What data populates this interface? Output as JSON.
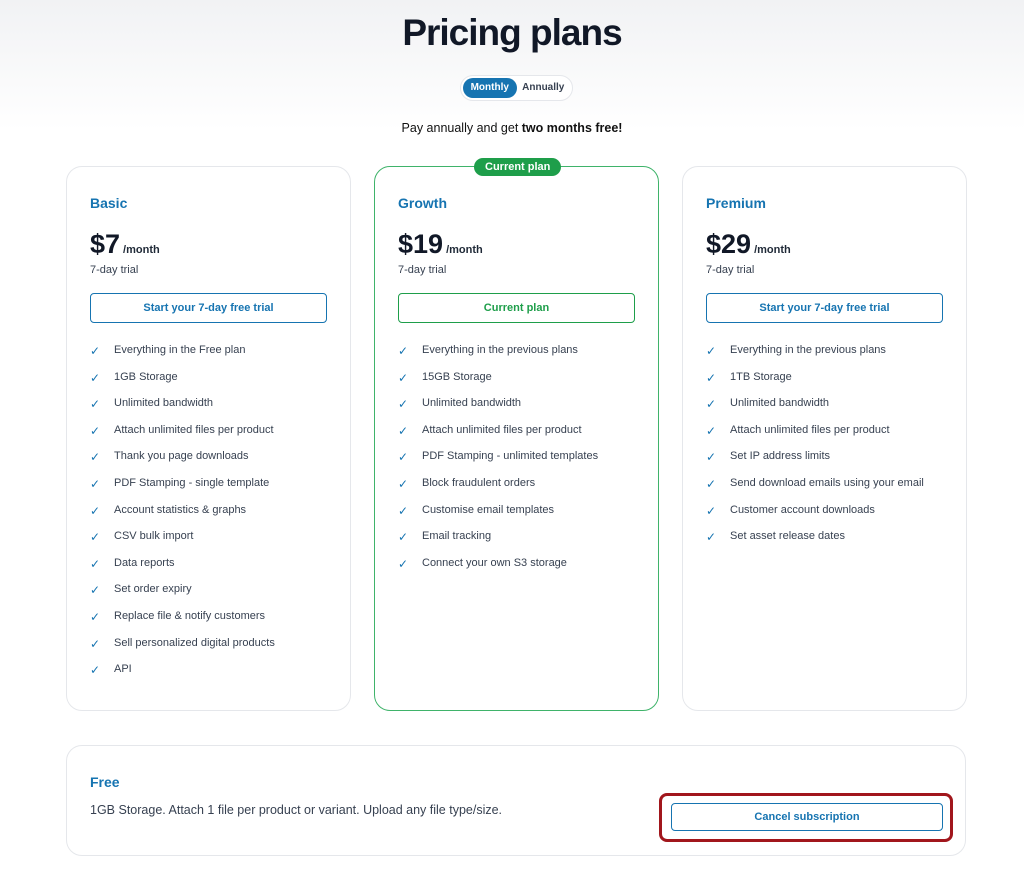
{
  "title": "Pricing plans",
  "toggle": {
    "monthly": "Monthly",
    "annually": "Annually",
    "selected": "Monthly"
  },
  "promo": {
    "text": "Pay annually and get ",
    "bold": "two months free!"
  },
  "plans": [
    {
      "name": "Basic",
      "price": "$7",
      "period": "/month",
      "trial": "7-day trial",
      "button": "Start your 7-day free trial",
      "features": [
        "Everything in the Free plan",
        "1GB Storage",
        "Unlimited bandwidth",
        "Attach unlimited files per product",
        "Thank you page downloads",
        "PDF Stamping - single template",
        "Account statistics & graphs",
        "CSV bulk import",
        "Data reports",
        "Set order expiry",
        "Replace file & notify customers",
        "Sell personalized digital products",
        "API"
      ]
    },
    {
      "name": "Growth",
      "price": "$19",
      "period": "/month",
      "trial": "7-day trial",
      "button": "Current plan",
      "badge": "Current plan",
      "features": [
        "Everything in the previous plans",
        "15GB Storage",
        "Unlimited bandwidth",
        "Attach unlimited files per product",
        "PDF Stamping - unlimited templates",
        "Block fraudulent orders",
        "Customise email templates",
        "Email tracking",
        "Connect your own S3 storage"
      ]
    },
    {
      "name": "Premium",
      "price": "$29",
      "period": "/month",
      "trial": "7-day trial",
      "button": "Start your 7-day free trial",
      "features": [
        "Everything in the previous plans",
        "1TB Storage",
        "Unlimited bandwidth",
        "Attach unlimited files per product",
        "Set IP address limits",
        "Send download emails using your email",
        "Customer account downloads",
        "Set asset release dates"
      ]
    }
  ],
  "free": {
    "name": "Free",
    "description": "1GB Storage. Attach 1 file per product or variant. Upload any file type/size.",
    "button": "Cancel subscription"
  },
  "colors": {
    "accent": "#1674b1",
    "current": "#1e9e4a",
    "highlight": "#a1161c"
  }
}
